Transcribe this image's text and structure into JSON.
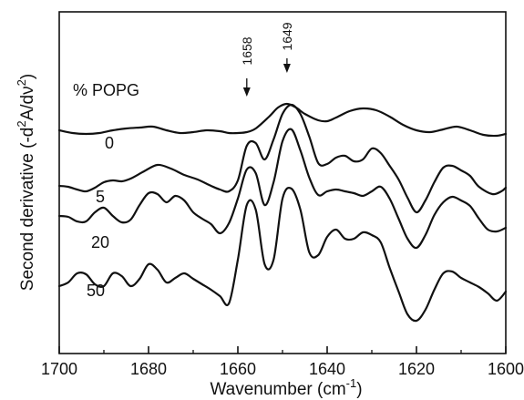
{
  "chart_data": {
    "type": "line",
    "title": "",
    "xlabel": "Wavenumber (cm",
    "xlabel_sup": "-1",
    "xlabel_close": ")",
    "ylabel": "Second derivative (-d",
    "ylabel_sup": "2",
    "ylabel_mid": "A/dν",
    "ylabel_sup2": "2",
    "ylabel_close": ")",
    "xlim": [
      1700,
      1600
    ],
    "x_reversed": true,
    "y_ticks_shown": false,
    "grid": false,
    "xticks": [
      1700,
      1680,
      1660,
      1640,
      1620,
      1600
    ],
    "legend_title": "% POPG",
    "annotations": [
      {
        "text": "1658",
        "x": 1658
      },
      {
        "text": "1649",
        "x": 1649
      }
    ],
    "series": [
      {
        "name": "0",
        "points": [
          [
            1700,
            143
          ],
          [
            1697,
            146
          ],
          [
            1694,
            147
          ],
          [
            1691,
            146
          ],
          [
            1688,
            143
          ],
          [
            1685,
            141
          ],
          [
            1682,
            140
          ],
          [
            1679,
            139
          ],
          [
            1676,
            143
          ],
          [
            1673,
            146
          ],
          [
            1670,
            145
          ],
          [
            1667,
            143
          ],
          [
            1664,
            144
          ],
          [
            1662,
            146
          ],
          [
            1660,
            146
          ],
          [
            1658,
            145
          ],
          [
            1656,
            141
          ],
          [
            1653,
            128
          ],
          [
            1651,
            118
          ],
          [
            1649,
            114
          ],
          [
            1647,
            118
          ],
          [
            1645,
            125
          ],
          [
            1642,
            132
          ],
          [
            1640,
            133
          ],
          [
            1638,
            129
          ],
          [
            1635,
            122
          ],
          [
            1632,
            119
          ],
          [
            1629,
            121
          ],
          [
            1626,
            128
          ],
          [
            1623,
            137
          ],
          [
            1620,
            143
          ],
          [
            1617,
            145
          ],
          [
            1614,
            142
          ],
          [
            1611,
            139
          ],
          [
            1608,
            143
          ],
          [
            1605,
            148
          ],
          [
            1602,
            149
          ],
          [
            1600,
            147
          ]
        ]
      },
      {
        "name": "5",
        "points": [
          [
            1700,
            204
          ],
          [
            1698,
            205
          ],
          [
            1696,
            208
          ],
          [
            1694,
            210
          ],
          [
            1692,
            206
          ],
          [
            1690,
            200
          ],
          [
            1688,
            198
          ],
          [
            1686,
            199
          ],
          [
            1684,
            196
          ],
          [
            1681,
            188
          ],
          [
            1678,
            181
          ],
          [
            1675,
            185
          ],
          [
            1672,
            192
          ],
          [
            1669,
            197
          ],
          [
            1666,
            204
          ],
          [
            1664,
            208
          ],
          [
            1662,
            210
          ],
          [
            1660,
            198
          ],
          [
            1658,
            160
          ],
          [
            1656,
            157
          ],
          [
            1654,
            175
          ],
          [
            1652,
            153
          ],
          [
            1650,
            125
          ],
          [
            1648,
            115
          ],
          [
            1646,
            125
          ],
          [
            1644,
            150
          ],
          [
            1642,
            179
          ],
          [
            1640,
            180
          ],
          [
            1638,
            173
          ],
          [
            1636,
            171
          ],
          [
            1634,
            177
          ],
          [
            1632,
            175
          ],
          [
            1630,
            163
          ],
          [
            1628,
            168
          ],
          [
            1626,
            182
          ],
          [
            1624,
            197
          ],
          [
            1622,
            217
          ],
          [
            1620,
            233
          ],
          [
            1618,
            220
          ],
          [
            1616,
            200
          ],
          [
            1614,
            184
          ],
          [
            1612,
            182
          ],
          [
            1610,
            187
          ],
          [
            1608,
            193
          ],
          [
            1606,
            205
          ],
          [
            1603,
            213
          ],
          [
            1601,
            210
          ],
          [
            1600,
            206
          ]
        ]
      },
      {
        "name": "20",
        "points": [
          [
            1700,
            237
          ],
          [
            1698,
            238
          ],
          [
            1696,
            243
          ],
          [
            1694,
            243
          ],
          [
            1692,
            233
          ],
          [
            1690,
            228
          ],
          [
            1688,
            237
          ],
          [
            1686,
            244
          ],
          [
            1684,
            241
          ],
          [
            1682,
            225
          ],
          [
            1680,
            212
          ],
          [
            1678,
            213
          ],
          [
            1676,
            222
          ],
          [
            1674,
            215
          ],
          [
            1672,
            220
          ],
          [
            1670,
            233
          ],
          [
            1668,
            240
          ],
          [
            1666,
            246
          ],
          [
            1664,
            256
          ],
          [
            1662,
            245
          ],
          [
            1660,
            218
          ],
          [
            1658,
            186
          ],
          [
            1656,
            190
          ],
          [
            1654,
            225
          ],
          [
            1652,
            200
          ],
          [
            1650,
            155
          ],
          [
            1648,
            142
          ],
          [
            1646,
            165
          ],
          [
            1644,
            195
          ],
          [
            1642,
            214
          ],
          [
            1640,
            210
          ],
          [
            1638,
            208
          ],
          [
            1636,
            210
          ],
          [
            1634,
            212
          ],
          [
            1632,
            215
          ],
          [
            1630,
            210
          ],
          [
            1628,
            205
          ],
          [
            1626,
            218
          ],
          [
            1624,
            240
          ],
          [
            1622,
            262
          ],
          [
            1620,
            272
          ],
          [
            1618,
            258
          ],
          [
            1616,
            236
          ],
          [
            1614,
            222
          ],
          [
            1612,
            216
          ],
          [
            1610,
            220
          ],
          [
            1608,
            226
          ],
          [
            1606,
            240
          ],
          [
            1604,
            252
          ],
          [
            1602,
            254
          ],
          [
            1600,
            250
          ]
        ]
      },
      {
        "name": "50",
        "points": [
          [
            1700,
            314
          ],
          [
            1698,
            310
          ],
          [
            1696,
            300
          ],
          [
            1694,
            301
          ],
          [
            1692,
            312
          ],
          [
            1690,
            314
          ],
          [
            1688,
            300
          ],
          [
            1686,
            303
          ],
          [
            1684,
            314
          ],
          [
            1682,
            306
          ],
          [
            1680,
            290
          ],
          [
            1678,
            296
          ],
          [
            1676,
            310
          ],
          [
            1674,
            305
          ],
          [
            1672,
            300
          ],
          [
            1670,
            306
          ],
          [
            1668,
            312
          ],
          [
            1666,
            318
          ],
          [
            1664,
            325
          ],
          [
            1662,
            333
          ],
          [
            1660,
            285
          ],
          [
            1658,
            225
          ],
          [
            1656,
            230
          ],
          [
            1654,
            290
          ],
          [
            1652,
            285
          ],
          [
            1650,
            218
          ],
          [
            1648,
            207
          ],
          [
            1646,
            230
          ],
          [
            1644,
            277
          ],
          [
            1642,
            280
          ],
          [
            1640,
            260
          ],
          [
            1638,
            252
          ],
          [
            1636,
            262
          ],
          [
            1634,
            262
          ],
          [
            1632,
            255
          ],
          [
            1630,
            258
          ],
          [
            1628,
            266
          ],
          [
            1626,
            294
          ],
          [
            1624,
            320
          ],
          [
            1622,
            345
          ],
          [
            1620,
            352
          ],
          [
            1618,
            340
          ],
          [
            1616,
            318
          ],
          [
            1614,
            300
          ],
          [
            1612,
            298
          ],
          [
            1610,
            305
          ],
          [
            1608,
            310
          ],
          [
            1606,
            315
          ],
          [
            1604,
            322
          ],
          [
            1602,
            330
          ],
          [
            1600,
            320
          ]
        ]
      }
    ]
  }
}
